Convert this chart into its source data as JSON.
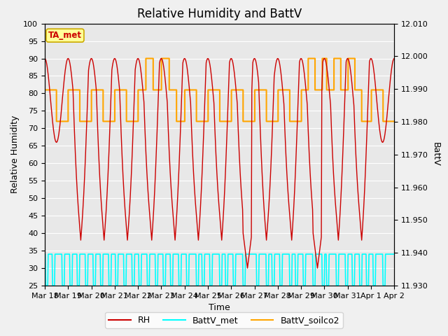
{
  "title": "Relative Humidity and BattV",
  "xlabel": "Time",
  "ylabel_left": "Relative Humidity",
  "ylabel_right": "BattV",
  "ylim_left": [
    25,
    100
  ],
  "ylim_right": [
    11.93,
    12.01
  ],
  "yticks_left": [
    25,
    30,
    35,
    40,
    45,
    50,
    55,
    60,
    65,
    70,
    75,
    80,
    85,
    90,
    95,
    100
  ],
  "yticks_right": [
    11.93,
    11.94,
    11.95,
    11.96,
    11.97,
    11.98,
    11.99,
    12.0,
    12.01
  ],
  "xtick_labels": [
    "Mar 18",
    "Mar 19",
    "Mar 20",
    "Mar 21",
    "Mar 22",
    "Mar 23",
    "Mar 24",
    "Mar 25",
    "Mar 26",
    "Mar 27",
    "Mar 28",
    "Mar 29",
    "Mar 30",
    "Mar 31",
    "Apr 1",
    "Apr 2"
  ],
  "rh_color": "#cc0000",
  "battv_met_color": "#00ffff",
  "battv_soilco2_color": "#ffa500",
  "plot_bg_color": "#e8e8e8",
  "fig_bg_color": "#f0f0f0",
  "annotation_text": "TA_met",
  "annotation_bg": "#ffff99",
  "annotation_border": "#ccaa00",
  "title_fontsize": 12,
  "axis_label_fontsize": 9,
  "tick_fontsize": 8,
  "legend_fontsize": 9,
  "rh_lw": 1.0,
  "battv_met_lw": 1.2,
  "battv_soilco2_lw": 1.5
}
